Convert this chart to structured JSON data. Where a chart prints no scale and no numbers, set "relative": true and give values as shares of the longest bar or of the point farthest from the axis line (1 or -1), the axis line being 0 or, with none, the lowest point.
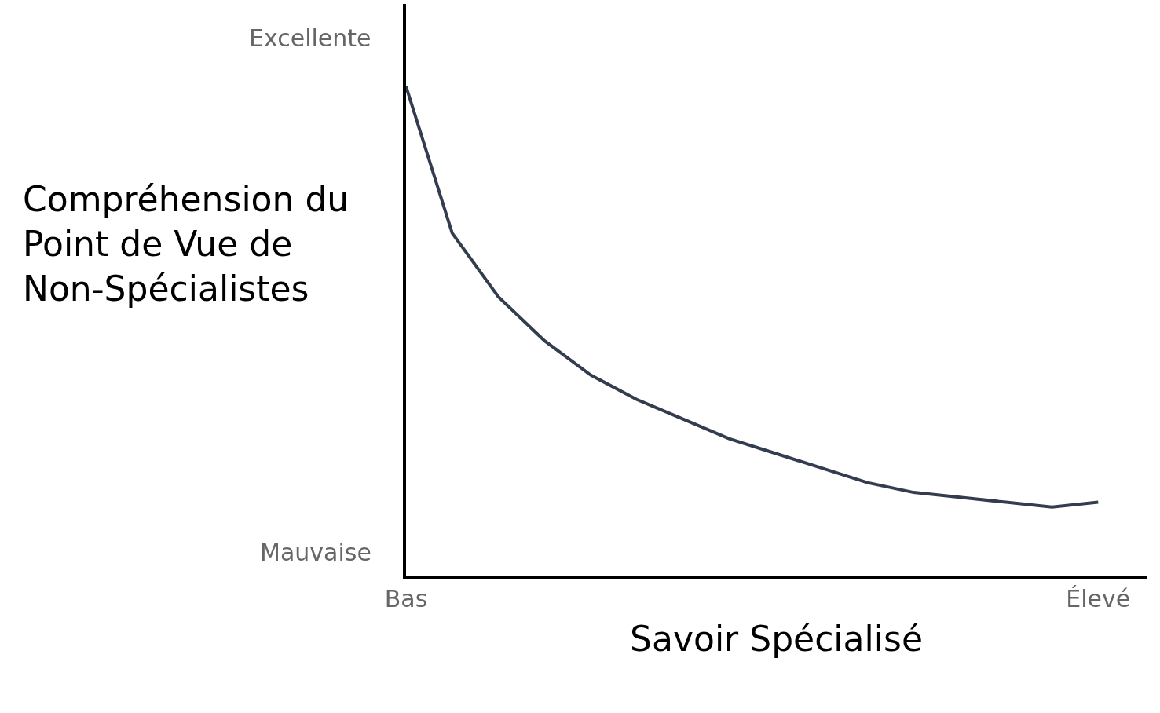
{
  "chart_data": {
    "type": "line",
    "relative": true,
    "xlabel": "Savoir Spécialisé",
    "ylabel": "Compréhension du\nPoint de Vue de\nNon-Spécialistes",
    "categories": [
      "Bas",
      null,
      null,
      null,
      null,
      null,
      null,
      null,
      null,
      null,
      null,
      null,
      null,
      null,
      null,
      "Élevé"
    ],
    "series": [
      {
        "color": "#343d4f",
        "values": [
          1.0,
          0.7,
          0.57,
          0.48,
          0.41,
          0.36,
          0.32,
          0.28,
          0.25,
          0.22,
          0.19,
          0.17,
          0.16,
          0.15,
          0.14,
          0.15
        ]
      }
    ],
    "annotations": [
      "Excellente",
      "Mauvaise"
    ],
    "grid": false,
    "marker": "none",
    "line_style": "solid"
  }
}
